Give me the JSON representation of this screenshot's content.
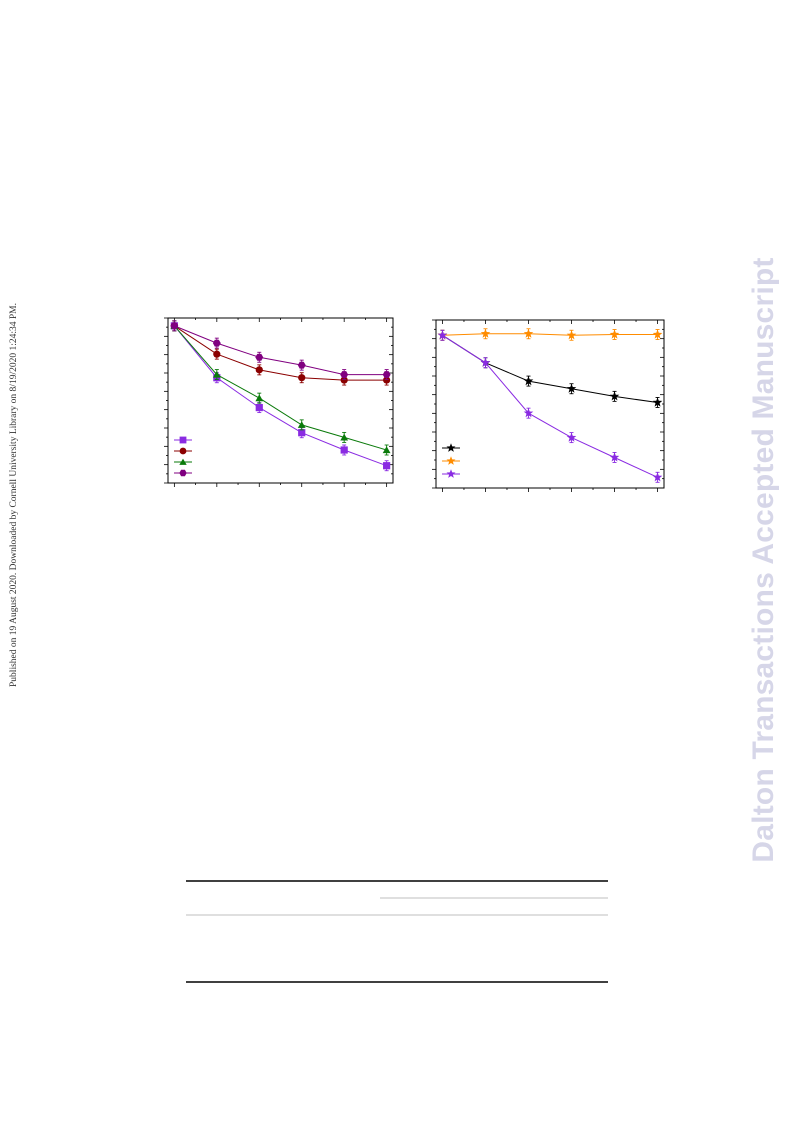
{
  "side_stamp": "Published on 19 August 2020. Downloaded by Cornell University Library on 8/19/2020 1:24:34 PM.",
  "watermark": "Dalton Transactions Accepted Manuscript",
  "chart_data": [
    {
      "type": "line",
      "x": [
        0,
        1,
        2,
        3,
        4,
        5
      ],
      "ylim": [
        0,
        1.05
      ],
      "xlim": [
        -0.15,
        5.15
      ],
      "legend": "bottom-left",
      "series": [
        {
          "color": "#8a2be2",
          "marker": "square",
          "values": [
            1.0,
            0.67,
            0.48,
            0.32,
            0.21,
            0.11
          ]
        },
        {
          "color": "#8b0000",
          "marker": "circle",
          "values": [
            1.0,
            0.82,
            0.72,
            0.67,
            0.655,
            0.655
          ]
        },
        {
          "color": "#0a7a0a",
          "marker": "triangle",
          "values": [
            1.0,
            0.69,
            0.54,
            0.37,
            0.29,
            0.21
          ]
        },
        {
          "color": "#800080",
          "marker": "hexagon",
          "values": [
            1.0,
            0.89,
            0.8,
            0.75,
            0.69,
            0.69
          ]
        }
      ]
    },
    {
      "type": "line",
      "x": [
        0,
        1,
        2,
        3,
        4,
        5
      ],
      "ylim": [
        0,
        1.1
      ],
      "xlim": [
        -0.15,
        5.15
      ],
      "legend": "bottom-left",
      "series": [
        {
          "color": "#000000",
          "marker": "star",
          "values": [
            1.0,
            0.82,
            0.7,
            0.65,
            0.6,
            0.56
          ]
        },
        {
          "color": "#ff8c00",
          "marker": "star",
          "values": [
            1.0,
            1.01,
            1.01,
            1.0,
            1.005,
            1.005
          ]
        },
        {
          "color": "#8a2be2",
          "marker": "star",
          "values": [
            1.0,
            0.82,
            0.49,
            0.33,
            0.2,
            0.07
          ]
        }
      ]
    }
  ]
}
